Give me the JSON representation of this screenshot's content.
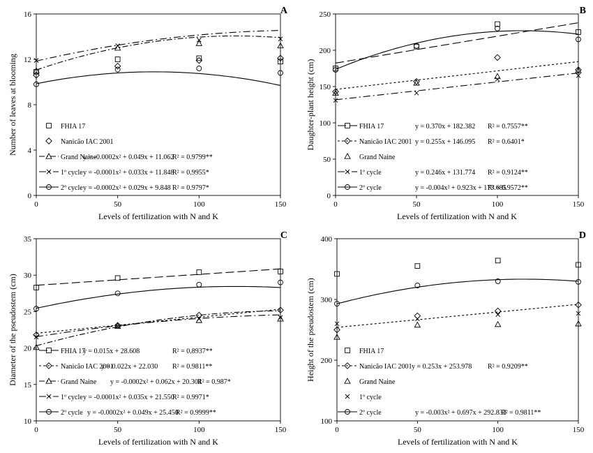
{
  "chart_data": [
    {
      "type": "scatter",
      "panel_letter": "A",
      "xlabel": "Levels of fertilization with N and K",
      "ylabel": "Number of leaves at blooming",
      "xlim": [
        0,
        150
      ],
      "ylim": [
        0,
        16
      ],
      "xticks": [
        0,
        50,
        100,
        150
      ],
      "yticks": [
        0,
        4,
        8,
        12,
        16
      ],
      "legend_position": "bottom-left",
      "x": [
        0,
        50,
        100,
        150
      ],
      "series": [
        {
          "name": "FHIA 17",
          "marker": "square",
          "values": [
            10.9,
            12.0,
            12.1,
            11.8
          ],
          "equation": ""
        },
        {
          "name": "Nanicão IAC 2001",
          "marker": "diamond",
          "values": [
            10.6,
            11.4,
            11.9,
            12.1
          ],
          "equation": ""
        },
        {
          "name": "Grand Naine",
          "marker": "triangle",
          "values": [
            11.0,
            13.0,
            13.4,
            13.2
          ],
          "fit": {
            "kind": "quad",
            "a": -0.0002,
            "b": 0.049,
            "c": 11.062,
            "dash": "8,3,2,3"
          },
          "equation": "y = -0.0002x² + 0.049x + 11.062",
          "r2": "R² = 0.9799**"
        },
        {
          "name": "1º cycle",
          "marker": "x",
          "values": [
            11.9,
            13.2,
            13.7,
            13.8
          ],
          "fit": {
            "kind": "quad",
            "a": -0.0001,
            "b": 0.033,
            "c": 11.848,
            "dash": "10,4,2,4"
          },
          "equation": "y = -0.0001x² + 0.033x + 11.848",
          "r2": "R² = 0.9955*"
        },
        {
          "name": "2º cycle",
          "marker": "circle",
          "values": [
            9.8,
            11.1,
            11.2,
            10.8
          ],
          "fit": {
            "kind": "quad",
            "a": -0.0002,
            "b": 0.029,
            "c": 9.848,
            "dash": ""
          },
          "equation": "y = -0.0002x² + 0.029x + 9.848",
          "r2": "R² = 0.9797*"
        }
      ]
    },
    {
      "type": "scatter",
      "panel_letter": "B",
      "xlabel": "Levels of fertilization with N and K",
      "ylabel": "Daughter-plant height (cm)",
      "xlim": [
        0,
        150
      ],
      "ylim": [
        0,
        250
      ],
      "xticks": [
        0,
        50,
        100,
        150
      ],
      "yticks": [
        0,
        50,
        100,
        150,
        200,
        250
      ],
      "legend_position": "bottom-left",
      "x": [
        0,
        50,
        100,
        150
      ],
      "series": [
        {
          "name": "FHIA 17",
          "marker": "square",
          "values": [
            175,
            205,
            236,
            225
          ],
          "fit": {
            "kind": "lin",
            "a": 0,
            "b": 0.37,
            "c": 182.382,
            "dash": "12,5"
          },
          "equation": "y = 0.370x + 182.382",
          "r2": "R² = 0.7557**"
        },
        {
          "name": "Nanicão IAC 2001",
          "marker": "diamond",
          "values": [
            143,
            157,
            190,
            173
          ],
          "fit": {
            "kind": "lin",
            "a": 0,
            "b": 0.255,
            "c": 146.095,
            "dash": "3,3"
          },
          "equation": "y = 0.255x + 146.095",
          "r2": "R² = 0.6401*"
        },
        {
          "name": "Grand Naine",
          "marker": "triangle",
          "values": [
            141,
            155,
            164,
            172
          ],
          "equation": ""
        },
        {
          "name": "1º cycle",
          "marker": "x",
          "values": [
            131,
            141,
            160,
            165
          ],
          "fit": {
            "kind": "lin",
            "a": 0,
            "b": 0.246,
            "c": 131.774,
            "dash": "10,4,2,4"
          },
          "equation": "y = 0.246x + 131.774",
          "r2": "R² = 0.9124**"
        },
        {
          "name": "2º cycle",
          "marker": "circle",
          "values": [
            173,
            206,
            230,
            215
          ],
          "fit": {
            "kind": "quad",
            "a": -0.004,
            "b": 0.923,
            "c": 173.685,
            "dash": ""
          },
          "equation": "y = -0.004x² + 0.923x + 173.685",
          "r2": "R² = 0.9572**"
        }
      ]
    },
    {
      "type": "scatter",
      "panel_letter": "C",
      "xlabel": "Levels of fertilization with N and K",
      "ylabel": "Diameter of the pseudostem (cm)",
      "xlim": [
        0,
        150
      ],
      "ylim": [
        10,
        35
      ],
      "xticks": [
        0,
        50,
        100,
        150
      ],
      "yticks": [
        10,
        15,
        20,
        25,
        30,
        35
      ],
      "legend_position": "bottom-left",
      "x": [
        0,
        50,
        100,
        150
      ],
      "series": [
        {
          "name": "FHIA 17",
          "marker": "square",
          "values": [
            28.3,
            29.6,
            30.4,
            30.5
          ],
          "fit": {
            "kind": "lin",
            "a": 0,
            "b": 0.015,
            "c": 28.608,
            "dash": "12,5"
          },
          "equation": "y = 0.015x + 28.608",
          "r2": "R² = 0.8937**"
        },
        {
          "name": "Nanicão IAC 2001",
          "marker": "diamond",
          "values": [
            21.8,
            23.1,
            24.5,
            25.2
          ],
          "fit": {
            "kind": "lin",
            "a": 0,
            "b": 0.022,
            "c": 22.03,
            "dash": "3,3"
          },
          "equation": "y = 0.022x + 22.030",
          "r2": "R² = 0.9811**"
        },
        {
          "name": "Grand Naine",
          "marker": "triangle",
          "values": [
            20.1,
            23.0,
            23.8,
            24.0
          ],
          "fit": {
            "kind": "quad",
            "a": -0.0002,
            "b": 0.062,
            "c": 20.304,
            "dash": "8,3,2,3"
          },
          "equation": "y = -0.0002x² + 0.062x + 20.304",
          "r2": "R² = 0.987*"
        },
        {
          "name": "1º cycle",
          "marker": "x",
          "values": [
            21.5,
            23.0,
            24.0,
            24.2
          ],
          "fit": {
            "kind": "quad",
            "a": -0.0001,
            "b": 0.035,
            "c": 21.55,
            "dash": "10,4,2,4"
          },
          "equation": "y = -0.0001x² + 0.035x + 21.550",
          "r2": "R² = 0.9971*"
        },
        {
          "name": "2º cycle",
          "marker": "circle",
          "values": [
            25.4,
            27.5,
            28.7,
            29.0
          ],
          "fit": {
            "kind": "quad",
            "a": -0.0002,
            "b": 0.049,
            "c": 25.45,
            "dash": ""
          },
          "equation": "y = -0.0002x² + 0.049x + 25.450",
          "r2": "R² = 0.9999**"
        }
      ]
    },
    {
      "type": "scatter",
      "panel_letter": "D",
      "xlabel": "Levels of fertilization with N and K",
      "ylabel": "Height of the pseudostem (cm)",
      "xlim": [
        0,
        150
      ],
      "ylim": [
        100,
        400
      ],
      "xticks": [
        0,
        50,
        100,
        150
      ],
      "yticks": [
        100,
        200,
        300,
        400
      ],
      "legend_position": "bottom-left",
      "x": [
        0,
        50,
        100,
        150
      ],
      "series": [
        {
          "name": "FHIA 17",
          "marker": "square",
          "values": [
            342,
            355,
            364,
            357
          ],
          "equation": ""
        },
        {
          "name": "Nanicão IAC 2001",
          "marker": "diamond",
          "values": [
            250,
            273,
            281,
            291
          ],
          "fit": {
            "kind": "lin",
            "a": 0,
            "b": 0.253,
            "c": 253.978,
            "dash": "3,3"
          },
          "equation": "y = 0.253x + 253.978",
          "r2": "R² = 0.9209**"
        },
        {
          "name": "Grand Naine",
          "marker": "triangle",
          "values": [
            238,
            258,
            259,
            260
          ],
          "equation": ""
        },
        {
          "name": "1º cycle",
          "marker": "x",
          "values": [
            260,
            268,
            275,
            277
          ],
          "equation": ""
        },
        {
          "name": "2º cycle",
          "marker": "circle",
          "values": [
            293,
            323,
            330,
            329
          ],
          "fit": {
            "kind": "quad",
            "a": -0.003,
            "b": 0.697,
            "c": 292.833,
            "dash": ""
          },
          "equation": "y = -0.003x² + 0.697x + 292.833",
          "r2": "R² = 0.9811**"
        }
      ]
    }
  ]
}
